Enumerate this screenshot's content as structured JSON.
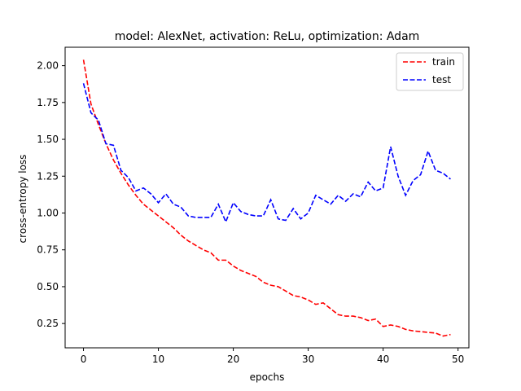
{
  "chart_data": {
    "type": "line",
    "title": "model: AlexNet, activation: ReLu, optimization: Adam",
    "xlabel": "epochs",
    "ylabel": "cross-entropy loss",
    "xlim": [
      -2.45,
      51.45
    ],
    "ylim": [
      0.085,
      2.125
    ],
    "xticks": [
      0,
      10,
      20,
      30,
      40,
      50
    ],
    "yticks": [
      0.25,
      0.5,
      0.75,
      1.0,
      1.25,
      1.5,
      1.75,
      2.0
    ],
    "ytick_labels": [
      "0.25",
      "0.50",
      "0.75",
      "1.00",
      "1.25",
      "1.50",
      "1.75",
      "2.00"
    ],
    "legend": "top-right",
    "x": [
      0,
      1,
      2,
      3,
      4,
      5,
      6,
      7,
      8,
      9,
      10,
      11,
      12,
      13,
      14,
      15,
      16,
      17,
      18,
      19,
      20,
      21,
      22,
      23,
      24,
      25,
      26,
      27,
      28,
      29,
      30,
      31,
      32,
      33,
      34,
      35,
      36,
      37,
      38,
      39,
      40,
      41,
      42,
      43,
      44,
      45,
      46,
      47,
      48,
      49
    ],
    "series": [
      {
        "name": "train",
        "color": "#ff0000",
        "values": [
          2.04,
          1.74,
          1.6,
          1.47,
          1.36,
          1.27,
          1.19,
          1.12,
          1.06,
          1.02,
          0.98,
          0.94,
          0.9,
          0.85,
          0.81,
          0.78,
          0.75,
          0.73,
          0.68,
          0.68,
          0.64,
          0.61,
          0.59,
          0.57,
          0.53,
          0.51,
          0.5,
          0.47,
          0.44,
          0.43,
          0.41,
          0.38,
          0.39,
          0.35,
          0.31,
          0.3,
          0.3,
          0.29,
          0.27,
          0.28,
          0.23,
          0.24,
          0.23,
          0.21,
          0.2,
          0.195,
          0.19,
          0.185,
          0.165,
          0.175
        ]
      },
      {
        "name": "test",
        "color": "#0000ff",
        "values": [
          1.88,
          1.68,
          1.63,
          1.47,
          1.46,
          1.29,
          1.24,
          1.15,
          1.17,
          1.13,
          1.07,
          1.13,
          1.06,
          1.04,
          0.98,
          0.97,
          0.97,
          0.97,
          1.06,
          0.94,
          1.07,
          1.01,
          0.99,
          0.98,
          0.98,
          1.09,
          0.96,
          0.95,
          1.03,
          0.96,
          1.0,
          1.12,
          1.09,
          1.06,
          1.12,
          1.08,
          1.13,
          1.11,
          1.21,
          1.15,
          1.17,
          1.45,
          1.25,
          1.12,
          1.22,
          1.26,
          1.42,
          1.29,
          1.27,
          1.23
        ]
      }
    ]
  }
}
